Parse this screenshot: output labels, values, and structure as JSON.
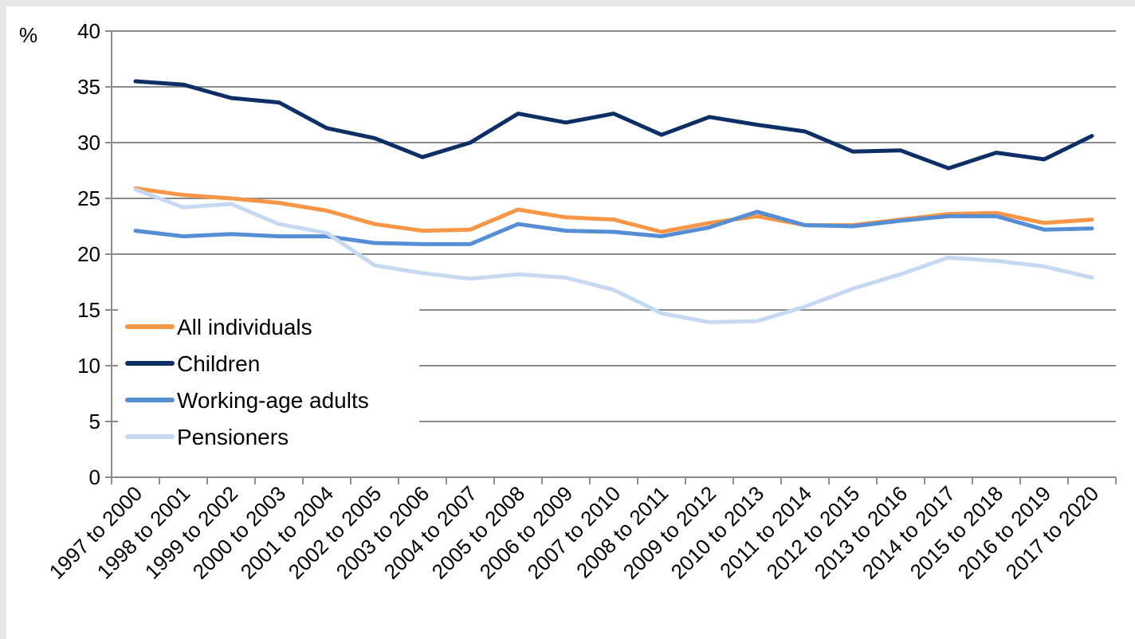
{
  "chart_data": {
    "type": "line",
    "ylabel": "%",
    "ylim": [
      0,
      40
    ],
    "yticks": [
      0,
      5,
      10,
      15,
      20,
      25,
      30,
      35,
      40
    ],
    "grid": true,
    "legend_position": "bottom-left",
    "categories": [
      "1997 to 2000",
      "1998 to 2001",
      "1999 to 2002",
      "2000 to 2003",
      "2001 to 2004",
      "2002 to 2005",
      "2003 to 2006",
      "2004 to 2007",
      "2005 to 2008",
      "2006 to 2009",
      "2007 to 2010",
      "2008 to 2011",
      "2009 to 2012",
      "2010 to 2013",
      "2011 to 2014",
      "2012 to 2015",
      "2013 to 2016",
      "2014 to 2017",
      "2015 to 2018",
      "2016 to 2019",
      "2017 to 2020"
    ],
    "series": [
      {
        "name": "All individuals",
        "color": "#f79646",
        "values": [
          25.9,
          25.3,
          25.0,
          24.6,
          23.9,
          22.7,
          22.1,
          22.2,
          24.0,
          23.3,
          23.1,
          22.0,
          22.8,
          23.4,
          22.6,
          22.6,
          23.1,
          23.6,
          23.7,
          22.8,
          23.1
        ]
      },
      {
        "name": "Children",
        "color": "#0d2f66",
        "values": [
          35.5,
          35.2,
          34.0,
          33.6,
          31.3,
          30.4,
          28.7,
          30.0,
          32.6,
          31.8,
          32.6,
          30.7,
          32.3,
          31.6,
          31.0,
          29.2,
          29.3,
          27.7,
          29.1,
          28.5,
          30.6
        ]
      },
      {
        "name": "Working-age adults",
        "color": "#558ed5",
        "values": [
          22.1,
          21.6,
          21.8,
          21.6,
          21.6,
          21.0,
          20.9,
          20.9,
          22.7,
          22.1,
          22.0,
          21.6,
          22.4,
          23.8,
          22.6,
          22.5,
          23.0,
          23.4,
          23.4,
          22.2,
          22.3
        ]
      },
      {
        "name": "Pensioners",
        "color": "#c6d9f1",
        "values": [
          25.8,
          24.2,
          24.5,
          22.7,
          21.9,
          19.0,
          18.3,
          17.8,
          18.2,
          17.9,
          16.8,
          14.7,
          13.9,
          14.0,
          15.3,
          16.9,
          18.2,
          19.7,
          19.4,
          18.9,
          17.9
        ]
      }
    ]
  }
}
